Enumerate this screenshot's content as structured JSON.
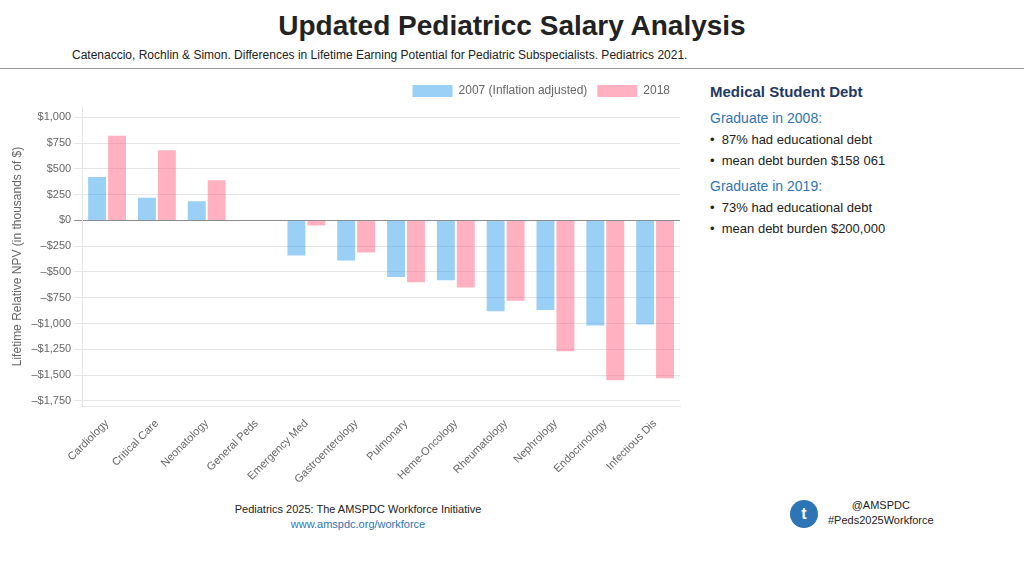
{
  "chart_data": {
    "type": "bar",
    "title": "Updated Pediatricc Salary Analysis",
    "subtitle": "Catenaccio, Rochlin & Simon. Differences in Lifetime Earning Potential for Pediatric Subspecialists. Pediatrics 2021.",
    "categories": [
      "Cardiology",
      "Critical Care",
      "Neonatology",
      "General Peds",
      "Emergency Med",
      "Gastroenterology",
      "Pulmonary",
      "Heme-Oncology",
      "Rheumatology",
      "Nephrology",
      "Endocrinology",
      "Infectious Dis"
    ],
    "series": [
      {
        "name": "2007 (Inflation adjusted)",
        "values": [
          420,
          220,
          185,
          0,
          -340,
          -390,
          -550,
          -580,
          -880,
          -870,
          -1020,
          -1010
        ]
      },
      {
        "name": "2018",
        "values": [
          820,
          680,
          390,
          0,
          -50,
          -310,
          -600,
          -650,
          -780,
          -1270,
          -1550,
          -1530
        ]
      }
    ],
    "ylabel": "Lifetime Relative NPV (in thousands of $)",
    "ylim": [
      -1800,
      1100
    ],
    "yticks": [
      {
        "value": 1000,
        "label": "$1,000"
      },
      {
        "value": 750,
        "label": "$750"
      },
      {
        "value": 500,
        "label": "$500"
      },
      {
        "value": 250,
        "label": "$250"
      },
      {
        "value": 0,
        "label": "$0"
      },
      {
        "value": -250,
        "label": "–$250"
      },
      {
        "value": -500,
        "label": "–$500"
      },
      {
        "value": -750,
        "label": "–$750"
      },
      {
        "value": -1000,
        "label": "–$1,000"
      },
      {
        "value": -1250,
        "label": "–$1,250"
      },
      {
        "value": -1500,
        "label": "–$1,500"
      },
      {
        "value": -1750,
        "label": "–$1,750"
      }
    ],
    "grid": true,
    "legend": "upper right",
    "annotations": [
      "Medical Student Debt",
      "Graduate in 2008:",
      "•  87% had educational debt",
      "•  mean debt burden $158 061",
      "Graduate in 2019:",
      "•  73% had educational debt",
      "•  mean debt burden $200,000",
      "Pediatrics 2025: The AMSPDC Workforce Initiative",
      "www.amspdc.org/workforce",
      "t",
      "@AMSPDC",
      "#Peds2025Workforce"
    ]
  }
}
